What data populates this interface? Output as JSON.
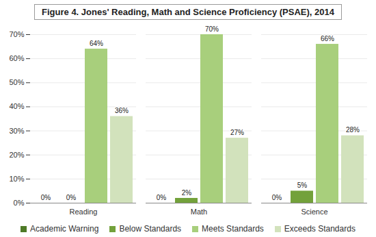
{
  "chart_data": {
    "type": "bar",
    "title": "Figure 4. Jones' Reading, Math and Science Proficiency (PSAE), 2014",
    "categories": [
      "Reading",
      "Math",
      "Science"
    ],
    "series": [
      {
        "name": "Academic Warning",
        "color": "#4e7a27",
        "values": [
          0,
          0,
          0
        ],
        "value_labels": [
          "0%",
          "0%",
          "0%"
        ]
      },
      {
        "name": "Below Standards",
        "color": "#73a13b",
        "values": [
          0,
          2,
          5
        ],
        "value_labels": [
          "0%",
          "2%",
          "5%"
        ]
      },
      {
        "name": "Meets Standards",
        "color": "#a8cf7c",
        "values": [
          64,
          70,
          66
        ],
        "value_labels": [
          "64%",
          "70%",
          "66%"
        ]
      },
      {
        "name": "Exceeds Standards",
        "color": "#d2e2bc",
        "values": [
          36,
          27,
          28
        ],
        "value_labels": [
          "36%",
          "27%",
          "28%"
        ]
      }
    ],
    "ylim": [
      0,
      70
    ],
    "yticks": [
      {
        "value": 0,
        "label": "0%"
      },
      {
        "value": 10,
        "label": "10%"
      },
      {
        "value": 20,
        "label": "20%"
      },
      {
        "value": 30,
        "label": "30%"
      },
      {
        "value": 40,
        "label": "40%"
      },
      {
        "value": 50,
        "label": "50%"
      },
      {
        "value": 60,
        "label": "60%"
      },
      {
        "value": 70,
        "label": "70%"
      }
    ],
    "grid": true,
    "data_labels": true,
    "legend": "bottom"
  }
}
